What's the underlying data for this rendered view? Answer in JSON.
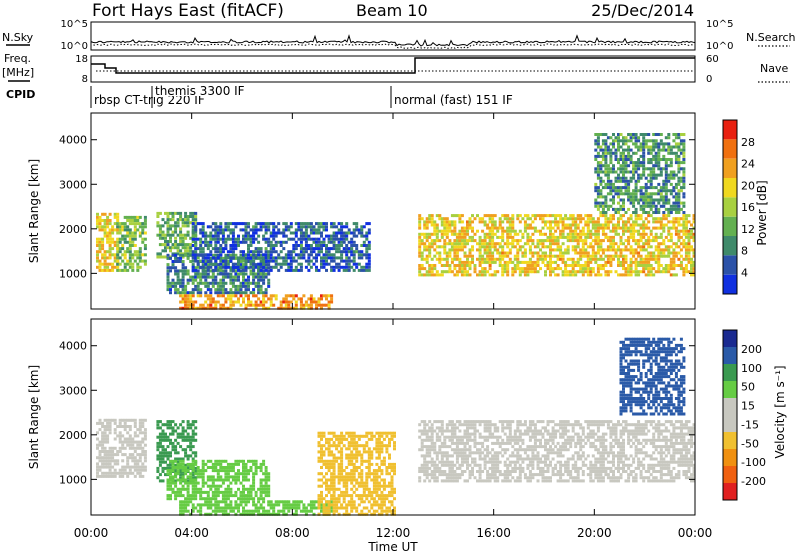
{
  "header": {
    "station": "Fort Hays East (fitACF)",
    "beam": "Beam 10",
    "date": "25/Dec/2014"
  },
  "top_panels": {
    "nsky_label": "N.Sky",
    "nsearch_label": "N.Search",
    "noise_ticks": [
      "10^5",
      "10^0"
    ],
    "freq_label": "Freq.",
    "freq_unit": "[MHz]",
    "freq_ticks": [
      "18",
      "8"
    ],
    "nave_label": "Nave",
    "nave_ticks": [
      "60",
      "0"
    ],
    "cpid_label": "CPID",
    "cpid_segments": [
      {
        "label": "rbsp CT-trig 220 IF",
        "start_hour": 0.1
      },
      {
        "label": "themis 3300 IF",
        "start_hour": 2.3
      },
      {
        "label": "normal (fast) 151 IF",
        "start_hour": 12.0
      }
    ]
  },
  "colors": {
    "power_scale": [
      "#1030e0",
      "#2b52a8",
      "#3f8a6a",
      "#63b050",
      "#a8d040",
      "#f0d820",
      "#f0a020",
      "#f07010",
      "#e82010"
    ],
    "velocity_scale": [
      "#e02020",
      "#f06010",
      "#f09010",
      "#f0c030",
      "#c8c8c0",
      "#c8c8c0",
      "#66cc44",
      "#3a9a50",
      "#2a5aa8",
      "#1a2a90"
    ]
  },
  "chart_data": [
    {
      "type": "heatmap",
      "panel": "power",
      "ylabel": "Slant Range [km]",
      "xlabel": "",
      "xlim": [
        0,
        24
      ],
      "ylim": [
        200,
        4600
      ],
      "yticks": [
        "1000",
        "2000",
        "3000",
        "4000"
      ],
      "colorbar_label": "Power [dB]",
      "colorbar_ticks": [
        "4",
        "8",
        "12",
        "16",
        "20",
        "24",
        "28"
      ],
      "bands": [
        {
          "t": [
            0.2,
            1.0
          ],
          "r": [
            1100,
            2400
          ],
          "v": 20
        },
        {
          "t": [
            1.0,
            2.2
          ],
          "r": [
            1100,
            2300
          ],
          "v": 14
        },
        {
          "t": [
            2.6,
            4.2
          ],
          "r": [
            1400,
            2400
          ],
          "v": 12
        },
        {
          "t": [
            3.0,
            7.0
          ],
          "r": [
            600,
            1500
          ],
          "v": 8
        },
        {
          "t": [
            3.5,
            9.5
          ],
          "r": [
            250,
            600
          ],
          "v": 24
        },
        {
          "t": [
            4.0,
            11.0
          ],
          "r": [
            1100,
            2200
          ],
          "v": 6
        },
        {
          "t": [
            13.0,
            24.0
          ],
          "r": [
            1000,
            2400
          ],
          "v": 20
        },
        {
          "t": [
            20.0,
            23.6
          ],
          "r": [
            2400,
            4200
          ],
          "v": 10
        }
      ]
    },
    {
      "type": "heatmap",
      "panel": "velocity",
      "ylabel": "Slant Range [km]",
      "xlabel": "Time UT",
      "xlim": [
        0,
        24
      ],
      "ylim": [
        200,
        4600
      ],
      "xticks": [
        "00:00",
        "04:00",
        "08:00",
        "12:00",
        "16:00",
        "20:00",
        "00:00"
      ],
      "yticks": [
        "1000",
        "2000",
        "3000",
        "4000"
      ],
      "colorbar_label": "Velocity [m s⁻¹]",
      "colorbar_ticks": [
        "200",
        "100",
        "50",
        "15",
        "-15",
        "-50",
        "-100",
        "-200"
      ],
      "bands": [
        {
          "t": [
            0.2,
            2.2
          ],
          "r": [
            1100,
            2400
          ],
          "v": 0
        },
        {
          "t": [
            2.6,
            4.2
          ],
          "r": [
            1000,
            2400
          ],
          "v": 60
        },
        {
          "t": [
            3.0,
            7.0
          ],
          "r": [
            600,
            1500
          ],
          "v": 30
        },
        {
          "t": [
            3.5,
            9.5
          ],
          "r": [
            250,
            600
          ],
          "v": 40
        },
        {
          "t": [
            9.0,
            12.0
          ],
          "r": [
            250,
            2100
          ],
          "v": -40
        },
        {
          "t": [
            13.0,
            24.0
          ],
          "r": [
            1000,
            2400
          ],
          "v": 0
        },
        {
          "t": [
            21.0,
            23.6
          ],
          "r": [
            2500,
            4200
          ],
          "v": 150
        }
      ]
    }
  ]
}
